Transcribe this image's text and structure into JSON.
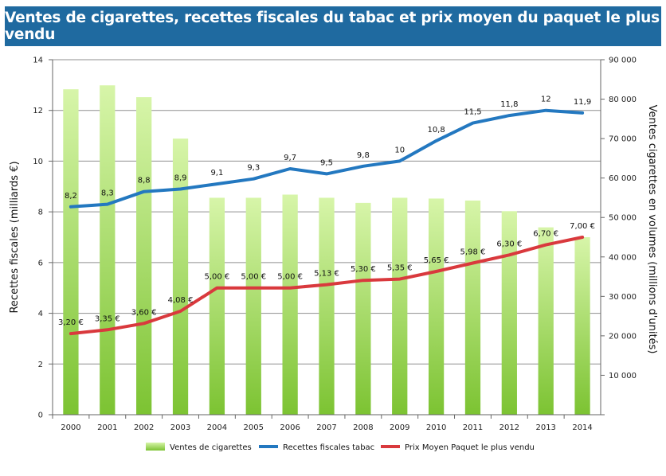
{
  "title": "Ventes de cigarettes, recettes fiscales du tabac et prix moyen du paquet le plus vendu",
  "colors": {
    "title_bg": "#1f6aa0",
    "bar_top": "#d7f5a9",
    "bar_bottom": "#7cc332",
    "recettes_line": "#2378c0",
    "prix_line": "#d9393d",
    "grid": "#8f8f8f"
  },
  "chart_data": {
    "type": "bar",
    "categories": [
      "2000",
      "2001",
      "2002",
      "2003",
      "2004",
      "2005",
      "2006",
      "2007",
      "2008",
      "2009",
      "2010",
      "2011",
      "2012",
      "2013",
      "2014"
    ],
    "y_left": {
      "label": "Recettes fiscales (milliards €)",
      "min": 0,
      "max": 14,
      "ticks": [
        "0",
        "2",
        "4",
        "6",
        "8",
        "10",
        "12",
        "14"
      ]
    },
    "y_right": {
      "label": "Ventes cigarettes en volumes (millions d'unités)",
      "min": 0,
      "max": 90000,
      "ticks": [
        "",
        "10 000",
        "20 000",
        "30 000",
        "40 000",
        "50 000",
        "60 000",
        "70 000",
        "80 000",
        "90 000"
      ]
    },
    "grid": true,
    "legend_position": "bottom",
    "series": [
      {
        "name": "Ventes de cigarettes",
        "type": "bar",
        "axis": "right",
        "values": [
          82500,
          83500,
          80500,
          70000,
          55000,
          55000,
          55800,
          55000,
          53700,
          55000,
          54800,
          54300,
          51600,
          47500,
          45000
        ]
      },
      {
        "name": "Recettes fiscales tabac",
        "type": "line",
        "axis": "left",
        "values": [
          8.2,
          8.3,
          8.8,
          8.9,
          9.1,
          9.3,
          9.7,
          9.5,
          9.8,
          10,
          10.8,
          11.5,
          11.8,
          12,
          11.9
        ],
        "labels": [
          "8,2",
          "8,3",
          "8,8",
          "8,9",
          "9,1",
          "9,3",
          "9,7",
          "9,5",
          "9,8",
          "10",
          "10,8",
          "11,5",
          "11,8",
          "12",
          "11,9"
        ]
      },
      {
        "name": "Prix Moyen Paquet le plus vendu",
        "type": "line",
        "axis": "left",
        "values": [
          3.2,
          3.35,
          3.6,
          4.08,
          5.0,
          5.0,
          5.0,
          5.13,
          5.3,
          5.35,
          5.65,
          5.98,
          6.3,
          6.7,
          7.0
        ],
        "labels": [
          "3,20 €",
          "3,35 €",
          "3,60 €",
          "4,08 €",
          "5,00 €",
          "5,00 €",
          "5,00 €",
          "5,13 €",
          "5,30 €",
          "5,35 €",
          "5,65 €",
          "5,98 €",
          "6,30 €",
          "6,70 €",
          "7,00 €"
        ]
      }
    ]
  }
}
